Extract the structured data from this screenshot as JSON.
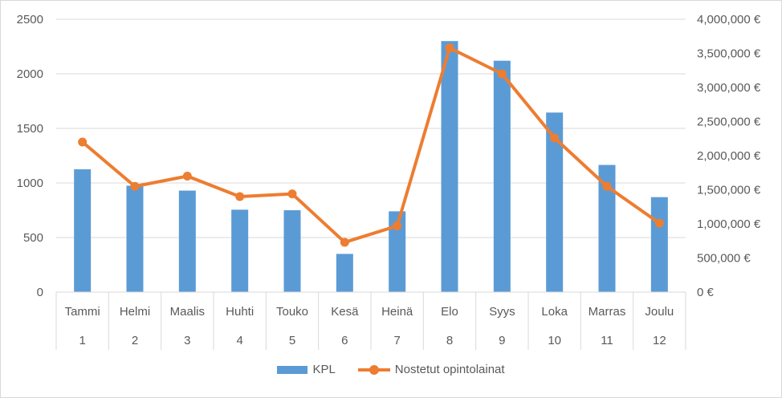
{
  "chart_data": {
    "type": "bar",
    "combo": "bar-line-dual-axis",
    "categories": [
      "Tammi",
      "Helmi",
      "Maalis",
      "Huhti",
      "Touko",
      "Kesä",
      "Heinä",
      "Elo",
      "Syys",
      "Loka",
      "Marras",
      "Joulu"
    ],
    "category_numbers": [
      "1",
      "2",
      "3",
      "4",
      "5",
      "6",
      "7",
      "8",
      "9",
      "10",
      "11",
      "12"
    ],
    "series": [
      {
        "name": "KPL",
        "type": "bar",
        "axis": "left",
        "color": "#5b9bd5",
        "values": [
          1125,
          975,
          930,
          755,
          750,
          350,
          740,
          2300,
          2120,
          1645,
          1165,
          870
        ]
      },
      {
        "name": "Nostetut opintolainat",
        "type": "line",
        "axis": "right",
        "color": "#ed7d31",
        "values": [
          2200000,
          1550000,
          1700000,
          1400000,
          1440000,
          730000,
          970000,
          3580000,
          3200000,
          2260000,
          1550000,
          1010000
        ]
      }
    ],
    "y_left": {
      "min": 0,
      "max": 2500,
      "ticks": [
        "0",
        "500",
        "1000",
        "1500",
        "2000",
        "2500"
      ]
    },
    "y_right": {
      "min": 0,
      "max": 4000000,
      "ticks": [
        "0 €",
        "500,000 €",
        "1,000,000 €",
        "1,500,000 €",
        "2,000,000 €",
        "2,500,000 €",
        "3,000,000 €",
        "3,500,000 €",
        "4,000,000 €"
      ]
    },
    "grid": true,
    "legend_position": "bottom"
  },
  "legend": {
    "bar_label": "KPL",
    "line_label": "Nostetut opintolainat"
  }
}
